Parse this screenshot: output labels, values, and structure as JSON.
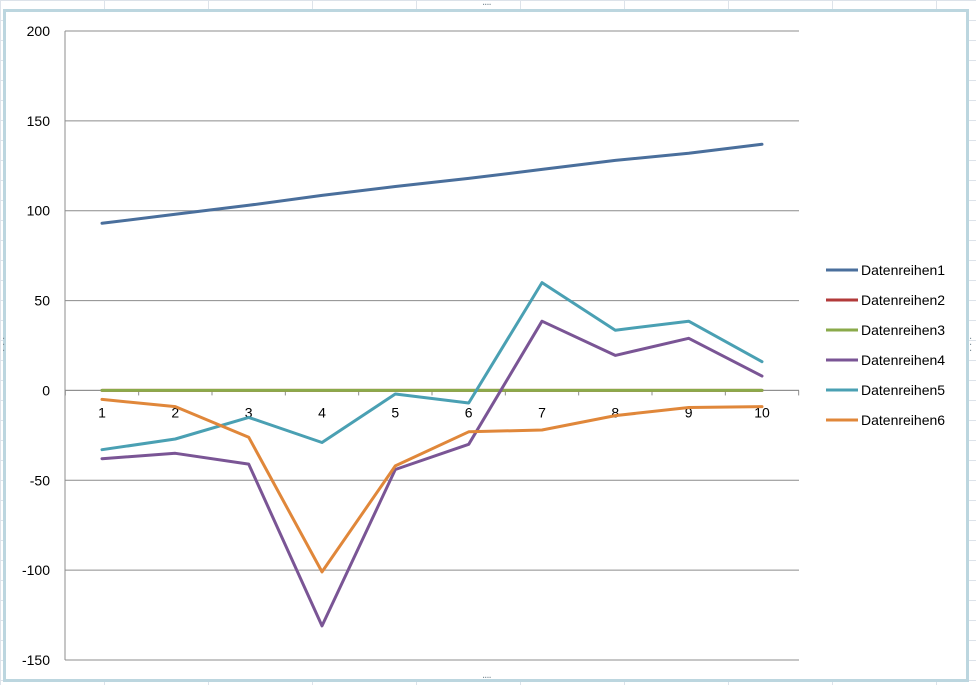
{
  "chart_data": {
    "type": "line",
    "categories": [
      "1",
      "2",
      "3",
      "4",
      "5",
      "6",
      "7",
      "8",
      "9",
      "10"
    ],
    "ylim": [
      -150,
      200
    ],
    "yticks": [
      200,
      150,
      100,
      50,
      0,
      -50,
      -100,
      -150
    ],
    "grid": true,
    "legend_position": "right",
    "series": [
      {
        "name": "Datenreihen1",
        "color": "#4a6f9c",
        "values": [
          93,
          98,
          103,
          108.5,
          113.5,
          118,
          123,
          128,
          132,
          137
        ]
      },
      {
        "name": "Datenreihen2",
        "color": "#b23a3a",
        "values": [
          0,
          0,
          0,
          0,
          0,
          0,
          0,
          0,
          0,
          0
        ]
      },
      {
        "name": "Datenreihen3",
        "color": "#8aaa4a",
        "values": [
          0,
          0,
          0,
          0,
          0,
          0,
          0,
          0,
          0,
          0
        ]
      },
      {
        "name": "Datenreihen4",
        "color": "#7a5595",
        "values": [
          -38,
          -35,
          -41,
          -131,
          -44,
          -30,
          38.5,
          19.5,
          29,
          8
        ]
      },
      {
        "name": "Datenreihen5",
        "color": "#4aa0b3",
        "values": [
          -33,
          -27,
          -15,
          -29,
          -2,
          -7,
          60,
          33.5,
          38.5,
          16
        ]
      },
      {
        "name": "Datenreihen6",
        "color": "#e0873a",
        "values": [
          -5,
          -9,
          -26,
          -101,
          -42,
          -23,
          -22,
          -14,
          -9.5,
          -9
        ]
      }
    ]
  }
}
